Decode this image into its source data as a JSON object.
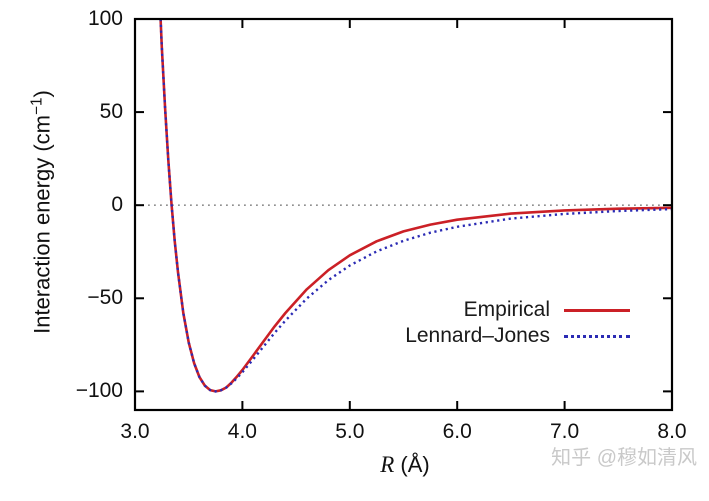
{
  "watermark": {
    "text": "知乎 @穆如清风",
    "color": "#c9c9c9"
  },
  "chart_data": {
    "type": "line",
    "title": "",
    "xlabel": "R (Å)",
    "xlabel_parts": {
      "variable": "R",
      "rest": " (Å)"
    },
    "ylabel": "Interaction energy (cm−1)",
    "ylabel_parts": {
      "prefix": "Interaction energy (cm",
      "superscript": "−1",
      "suffix": ")"
    },
    "xlim": [
      3.0,
      8.0
    ],
    "ylim": [
      -110,
      100
    ],
    "x_ticks": {
      "values": [
        3,
        4,
        5,
        6,
        7,
        8
      ],
      "labels": [
        "3.0",
        "4.0",
        "5.0",
        "6.0",
        "7.0",
        "8.0"
      ]
    },
    "y_ticks": {
      "values": [
        100,
        50,
        0,
        -50,
        -100
      ],
      "labels": [
        "100",
        "50",
        "0",
        "−50",
        "−100"
      ]
    },
    "grid": false,
    "frame_color": "#000000",
    "zero_line": {
      "value": 0,
      "color": "#909090",
      "style": "dotted"
    },
    "legend": {
      "position": "inside-right-center",
      "entries": [
        "Empirical",
        "Lennard–Jones"
      ]
    },
    "series": [
      {
        "name": "Empirical",
        "line_style": "solid",
        "color": "#cb2026",
        "points": [
          [
            3.22,
            125.0
          ],
          [
            3.25,
            84.9
          ],
          [
            3.28,
            52.1
          ],
          [
            3.31,
            24.2
          ],
          [
            3.34,
            0.7
          ],
          [
            3.37,
            -19.2
          ],
          [
            3.4,
            -36.0
          ],
          [
            3.45,
            -57.9
          ],
          [
            3.5,
            -73.7
          ],
          [
            3.55,
            -84.8
          ],
          [
            3.6,
            -92.3
          ],
          [
            3.65,
            -96.9
          ],
          [
            3.7,
            -99.3
          ],
          [
            3.75,
            -100.0
          ],
          [
            3.8,
            -99.4
          ],
          [
            3.85,
            -97.9
          ],
          [
            3.9,
            -95.2
          ],
          [
            3.95,
            -92.0
          ],
          [
            4.0,
            -88.5
          ],
          [
            4.1,
            -80.8
          ],
          [
            4.2,
            -72.9
          ],
          [
            4.3,
            -65.1
          ],
          [
            4.4,
            -57.9
          ],
          [
            4.6,
            -45.2
          ],
          [
            4.8,
            -34.9
          ],
          [
            5.0,
            -26.9
          ],
          [
            5.25,
            -19.4
          ],
          [
            5.5,
            -14.1
          ],
          [
            5.75,
            -10.4
          ],
          [
            6.0,
            -7.8
          ],
          [
            6.5,
            -4.5
          ],
          [
            7.0,
            -2.8
          ],
          [
            7.5,
            -1.9
          ],
          [
            8.0,
            -1.4
          ]
        ]
      },
      {
        "name": "Lennard–Jones",
        "line_style": "dotted",
        "color": "#2b2bb4",
        "points": [
          [
            3.22,
            125.0
          ],
          [
            3.25,
            84.9
          ],
          [
            3.28,
            52.1
          ],
          [
            3.31,
            24.2
          ],
          [
            3.34,
            0.7
          ],
          [
            3.37,
            -19.2
          ],
          [
            3.4,
            -36.0
          ],
          [
            3.45,
            -57.9
          ],
          [
            3.5,
            -73.7
          ],
          [
            3.55,
            -84.8
          ],
          [
            3.6,
            -92.3
          ],
          [
            3.65,
            -96.9
          ],
          [
            3.7,
            -99.3
          ],
          [
            3.75,
            -100.0
          ],
          [
            3.8,
            -99.4
          ],
          [
            3.85,
            -97.9
          ],
          [
            3.9,
            -95.6
          ],
          [
            3.95,
            -92.8
          ],
          [
            4.0,
            -89.7
          ],
          [
            4.1,
            -82.8
          ],
          [
            4.2,
            -75.7
          ],
          [
            4.3,
            -68.6
          ],
          [
            4.4,
            -62.0
          ],
          [
            4.6,
            -50.1
          ],
          [
            4.8,
            -40.3
          ],
          [
            5.0,
            -32.4
          ],
          [
            5.25,
            -24.8
          ],
          [
            5.5,
            -19.1
          ],
          [
            5.75,
            -14.8
          ],
          [
            6.0,
            -11.6
          ],
          [
            6.5,
            -7.2
          ],
          [
            7.0,
            -4.7
          ],
          [
            7.5,
            -3.1
          ],
          [
            8.0,
            -2.1
          ]
        ]
      }
    ]
  }
}
